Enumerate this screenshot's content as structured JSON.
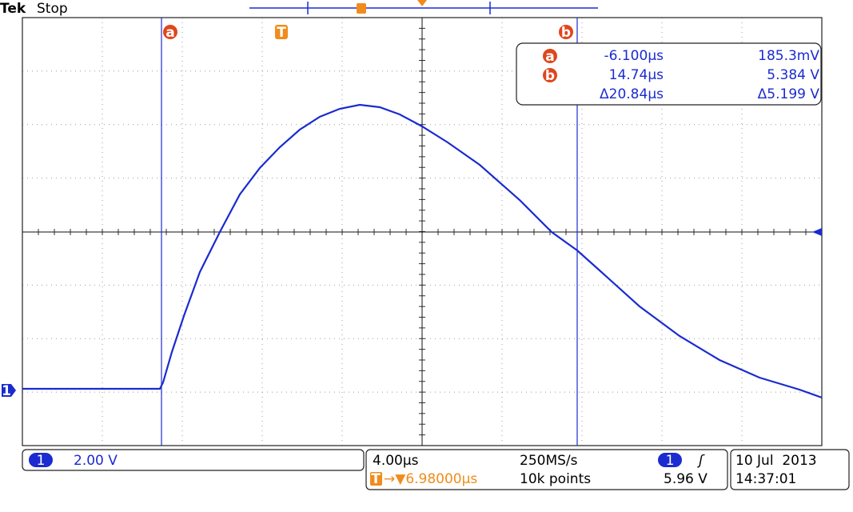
{
  "header": {
    "brand": "Tek",
    "status": "Stop"
  },
  "cursors": {
    "a": "a",
    "trigger": "T",
    "b": "b"
  },
  "readout": {
    "rows": [
      {
        "marker": "a",
        "time": "-6.100µs",
        "voltage": "185.3mV"
      },
      {
        "marker": "b",
        "time": "14.74µs",
        "voltage": "5.384 V"
      },
      {
        "time": "Δ20.84µs",
        "voltage": "Δ5.199 V"
      }
    ]
  },
  "channel_marker": "1",
  "status_bar": {
    "channel": "1",
    "scale": "2.00 V",
    "timebase": "4.00µs",
    "sample_rate": "250MS/s",
    "trigger_source": "1",
    "trigger_slope": "ʃ",
    "trigger_level": "5.96 V",
    "trigger_icon": "T",
    "trigger_position": "→▼6.98000µs",
    "record_length": "10k points",
    "date": "10 Jul  2013",
    "time": "14:37:01"
  }
}
